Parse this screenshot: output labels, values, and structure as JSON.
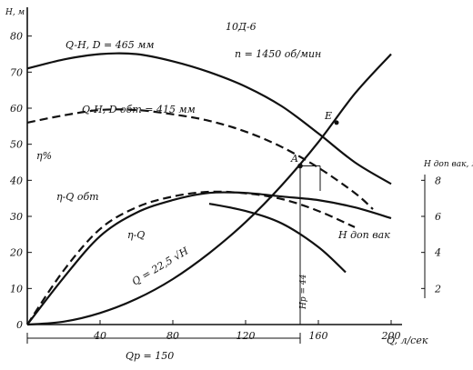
{
  "chart_data": {
    "type": "line",
    "title": "10Д-6",
    "subtitle": "n = 1450 об/мин",
    "xlabel": "Q, л/сек",
    "ylabel_left": "H, м",
    "ylabel_left_inner": "η%",
    "ylabel_right": "H доп вак, м",
    "grid": false,
    "x_ticks": [
      "40",
      "80",
      "120",
      "160",
      "200"
    ],
    "y_ticks_left": [
      "0",
      "10",
      "20",
      "30",
      "40",
      "50",
      "60",
      "70",
      "80"
    ],
    "y_ticks_right": [
      "2",
      "4",
      "6",
      "8"
    ],
    "xlim": [
      0,
      210
    ],
    "ylim": [
      0,
      85
    ],
    "series": [
      {
        "name": "Q-H, D = 465 мм",
        "style": "solid",
        "x": [
          0,
          20,
          40,
          60,
          80,
          100,
          120,
          140,
          160,
          180,
          200
        ],
        "y": [
          71,
          73.5,
          75,
          75,
          73,
          70,
          66,
          60.5,
          53,
          45,
          39
        ]
      },
      {
        "name": "Q-H, D обт = 415 мм",
        "style": "dashed",
        "x": [
          0,
          20,
          40,
          60,
          80,
          100,
          120,
          140,
          160,
          180,
          190
        ],
        "y": [
          56,
          58,
          59.5,
          59.5,
          58.3,
          56.5,
          53.5,
          49.2,
          43.5,
          36.5,
          32
        ]
      },
      {
        "name": "η-Q",
        "style": "solid",
        "x": [
          0,
          20,
          40,
          60,
          80,
          100,
          120,
          140,
          160,
          180,
          200
        ],
        "y": [
          0,
          13,
          24.5,
          31,
          34.5,
          36.5,
          36.5,
          35.5,
          34.5,
          32.5,
          29.5
        ]
      },
      {
        "name": "η-Q обт",
        "style": "dashed",
        "x": [
          0,
          20,
          40,
          60,
          80,
          100,
          120,
          140,
          160,
          180
        ],
        "y": [
          0,
          15,
          26.5,
          32.5,
          35.5,
          36.8,
          36.4,
          34.8,
          31.5,
          27
        ]
      },
      {
        "name": "Q = 22,5 √H",
        "style": "solid",
        "x": [
          0,
          20,
          40,
          60,
          80,
          100,
          120,
          140,
          160,
          180,
          200
        ],
        "y": [
          0,
          0.8,
          3.2,
          7.1,
          12.6,
          19.8,
          28.4,
          38.7,
          50.6,
          64,
          75
        ]
      },
      {
        "name": "H доп вак",
        "style": "solid",
        "x": [
          100,
          120,
          140,
          160,
          175
        ],
        "y": [
          33.5,
          31.5,
          28,
          21.5,
          14.5
        ]
      }
    ],
    "annotations": [
      {
        "text": "E",
        "x": 170,
        "y": 56.5
      },
      {
        "text": "A",
        "x": 150,
        "y": 45
      },
      {
        "text": "Hр = 44",
        "x": 153,
        "y": 8
      },
      {
        "text": "Qр = 150",
        "x": 75,
        "y": -8
      }
    ],
    "operating_point": {
      "x": 150,
      "y": 44
    }
  }
}
